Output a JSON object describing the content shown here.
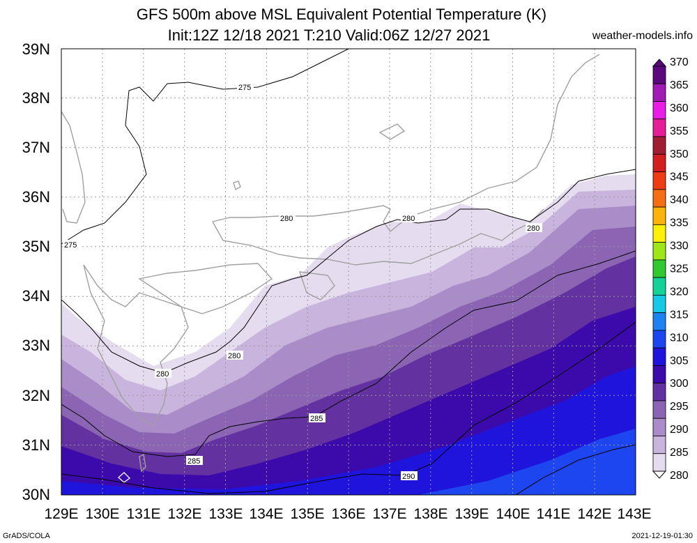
{
  "title": "GFS 500m above MSL Equivalent Potential Temperature (K)",
  "subtitle": "Init:12Z 12/18 2021 T:210 Valid:06Z 12/27 2021",
  "site": "weather-models.info",
  "footer_left": "GrADS/COLA",
  "footer_right": "2021-12-19-01:30",
  "lat_labels": [
    "39N",
    "38N",
    "37N",
    "36N",
    "35N",
    "34N",
    "33N",
    "32N",
    "31N",
    "30N"
  ],
  "lon_labels": [
    "129E",
    "130E",
    "131E",
    "132E",
    "133E",
    "134E",
    "135E",
    "136E",
    "137E",
    "138E",
    "139E",
    "140E",
    "141E",
    "142E",
    "143E"
  ],
  "colorbar": {
    "labels": [
      "370",
      "365",
      "360",
      "355",
      "350",
      "345",
      "340",
      "335",
      "330",
      "325",
      "320",
      "315",
      "310",
      "305",
      "300",
      "295",
      "290",
      "285",
      "280"
    ],
    "colors": [
      "#5a0a7a",
      "#a01ab4",
      "#e61ee6",
      "#e61e96",
      "#a01e32",
      "#d21e1e",
      "#f03c14",
      "#f56e14",
      "#fab40a",
      "#fff00a",
      "#a0e614",
      "#32c832",
      "#14d296",
      "#14c8e6",
      "#1e82f0",
      "#1e46f0",
      "#1e14dc",
      "#3c0aaa",
      "#6432a0",
      "#8c64b4",
      "#aa8cc8",
      "#c8b4dc",
      "#e6dcf0"
    ]
  },
  "contour_labels": [
    "275",
    "275",
    "280",
    "280",
    "280",
    "280",
    "280",
    "285",
    "285",
    "290"
  ]
}
